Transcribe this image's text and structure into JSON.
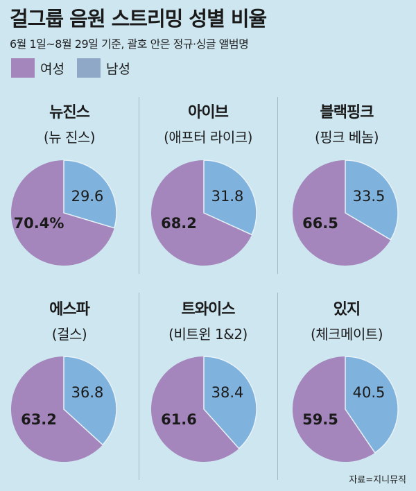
{
  "chart_data": {
    "type": "pie",
    "title": "걸그룹 음원 스트리밍 성별 비율",
    "subtitle": "6월 1일~8월 29일 기준, 괄호 안은 정규·싱글 앨범명",
    "legend": [
      {
        "label": "여성",
        "color": "#a586bc"
      },
      {
        "label": "남성",
        "color": "#8fa8c8"
      }
    ],
    "slice_colors": {
      "female": "#a586bc",
      "male": "#7fb2dc"
    },
    "groups": [
      {
        "name": "뉴진스",
        "album": "(뉴 진스)",
        "female": 70.4,
        "male": 29.6,
        "female_label": "70.4%",
        "male_label": "29.6"
      },
      {
        "name": "아이브",
        "album": "(애프터 라이크)",
        "female": 68.2,
        "male": 31.8,
        "female_label": "68.2",
        "male_label": "31.8"
      },
      {
        "name": "블랙핑크",
        "album": "(핑크 베놈)",
        "female": 66.5,
        "male": 33.5,
        "female_label": "66.5",
        "male_label": "33.5"
      },
      {
        "name": "에스파",
        "album": "(걸스)",
        "female": 63.2,
        "male": 36.8,
        "female_label": "63.2",
        "male_label": "36.8"
      },
      {
        "name": "트와이스",
        "album": "(비트윈 1&2)",
        "female": 61.6,
        "male": 38.4,
        "female_label": "61.6",
        "male_label": "38.4"
      },
      {
        "name": "있지",
        "album": "(체크메이트)",
        "female": 59.5,
        "male": 40.5,
        "female_label": "59.5",
        "male_label": "40.5"
      }
    ],
    "source": "자료=지니뮤직"
  }
}
